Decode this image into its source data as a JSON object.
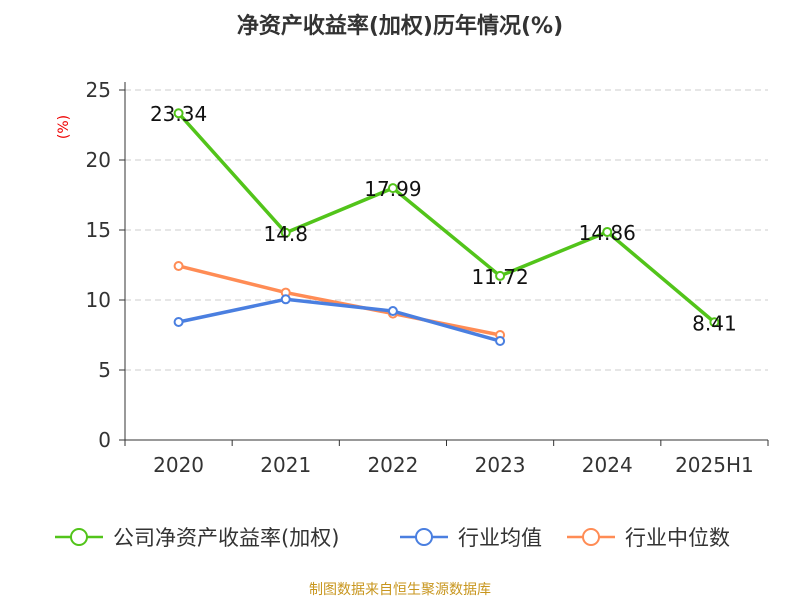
{
  "chart_data": {
    "type": "line",
    "title": "净资产收益率(加权)历年情况(%)",
    "ylabel": "(%)",
    "categories": [
      "2020",
      "2021",
      "2022",
      "2023",
      "2024",
      "2025H1"
    ],
    "ylim": [
      0,
      25
    ],
    "yticks": [
      0,
      5,
      10,
      15,
      20,
      25
    ],
    "grid": true,
    "legend_position": "bottom",
    "series": [
      {
        "name": "公司净资产收益率(加权)",
        "color": "#52c41a",
        "values": [
          23.34,
          14.8,
          17.99,
          11.72,
          14.86,
          8.41
        ],
        "labels": [
          "23.34",
          "14.8",
          "17.99",
          "11.72",
          "14.86",
          "8.41"
        ]
      },
      {
        "name": "行业均值",
        "color": "#4a7fe0",
        "values": [
          8.43,
          10.05,
          9.21,
          7.07,
          null,
          null
        ]
      },
      {
        "name": "行业中位数",
        "color": "#ff8c55",
        "values": [
          12.43,
          10.53,
          9.03,
          7.5,
          null,
          null
        ]
      }
    ]
  },
  "source": "制图数据来自恒生聚源数据库"
}
